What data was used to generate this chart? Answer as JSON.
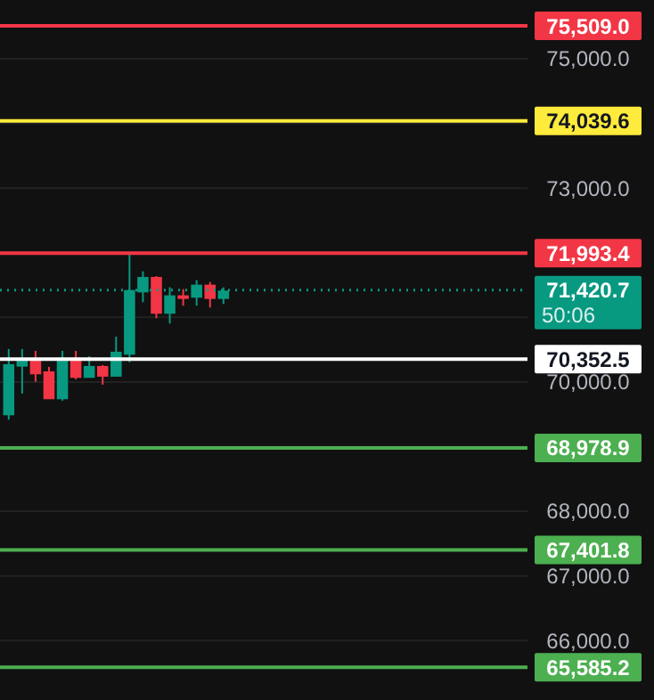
{
  "chart_data": {
    "type": "candlestick",
    "categories": [
      null,
      null,
      null,
      null,
      null,
      null,
      null,
      null,
      null,
      null,
      null,
      null,
      null,
      null,
      null,
      null,
      null,
      null,
      null,
      null,
      null,
      null,
      null,
      null,
      null,
      null,
      null,
      null,
      null,
      null,
      null,
      null,
      null,
      null,
      null,
      null,
      null,
      null,
      null
    ],
    "ohlc": [
      [
        69499,
        70510,
        69417,
        70262
      ],
      [
        70252,
        70510,
        69821,
        70317
      ],
      [
        70317,
        70482,
        70004,
        70133
      ],
      [
        70151,
        70234,
        69738,
        69747
      ],
      [
        69747,
        70482,
        69711,
        70363
      ],
      [
        70363,
        70482,
        70041,
        70078
      ],
      [
        70078,
        70399,
        70078,
        70234
      ],
      [
        70234,
        70262,
        69959,
        70096
      ],
      [
        70096,
        70702,
        70096,
        70454
      ],
      [
        70436,
        71970,
        70307,
        71409
      ],
      [
        71400,
        71712,
        71235,
        71611
      ],
      [
        71611,
        71639,
        70987,
        71070
      ],
      [
        71070,
        71465,
        70904,
        71327
      ],
      [
        71327,
        71437,
        71180,
        71308
      ],
      [
        71318,
        71575,
        71180,
        71492
      ],
      [
        71492,
        71547,
        71152,
        71299
      ],
      [
        71299,
        71465,
        71207,
        71400
      ],
      null,
      null,
      null,
      null,
      null,
      null,
      null,
      null,
      null,
      null,
      null,
      null,
      null,
      null,
      null,
      null,
      null,
      null,
      null,
      null,
      null,
      null
    ],
    "colors": [
      "#089981",
      "#089981",
      "#f23645",
      "#f23645",
      "#089981",
      "#f23645",
      "#089981",
      "#f23645",
      "#089981",
      "#089981",
      "#089981",
      "#f23645",
      "#089981",
      "#f23645",
      "#089981",
      "#f23645",
      "#089981",
      null,
      null,
      null,
      null,
      null,
      null,
      null,
      null,
      null,
      null,
      null,
      null,
      null,
      null,
      null,
      null,
      null,
      null,
      null,
      null,
      null,
      null
    ],
    "ylim": [
      65080,
      75910
    ],
    "yticks": [
      {
        "value": 66000,
        "label": "66,000.0"
      },
      {
        "value": 67000,
        "label": "67,000.0"
      },
      {
        "value": 68000,
        "label": "68,000.0"
      },
      {
        "value": 69000,
        "label": null
      },
      {
        "value": 70000,
        "label": "70,000.0"
      },
      {
        "value": 71000,
        "label": null
      },
      {
        "value": 72000,
        "label": null
      },
      {
        "value": 73000,
        "label": "73,000.0"
      },
      {
        "value": 74000,
        "label": null
      },
      {
        "value": 75000,
        "label": "75,000.0"
      }
    ],
    "grid": "y",
    "ref_lines": [
      {
        "axis": "y",
        "value": 75509.0,
        "label": "75,509.0",
        "color": "#f23645"
      },
      {
        "axis": "y",
        "value": 74039.6,
        "label": "74,039.6",
        "color": "#ffeb3b"
      },
      {
        "axis": "y",
        "value": 71993.4,
        "label": "71,993.4",
        "color": "#f23645"
      },
      {
        "axis": "y",
        "value": 71420.7,
        "label": "71,420.7",
        "color": "#089981",
        "line_style": "dotted"
      },
      {
        "axis": "y",
        "value": 70352.5,
        "label": "70,352.5",
        "color": "#ffffff"
      },
      {
        "axis": "y",
        "value": 68978.9,
        "label": "68,978.9",
        "color": "#4caf50"
      },
      {
        "axis": "y",
        "value": 67401.8,
        "label": "67,401.8",
        "color": "#4caf50"
      },
      {
        "axis": "y",
        "value": 65585.2,
        "label": "65,585.2",
        "color": "#4caf50"
      }
    ],
    "annotations": [
      "50:06"
    ]
  }
}
